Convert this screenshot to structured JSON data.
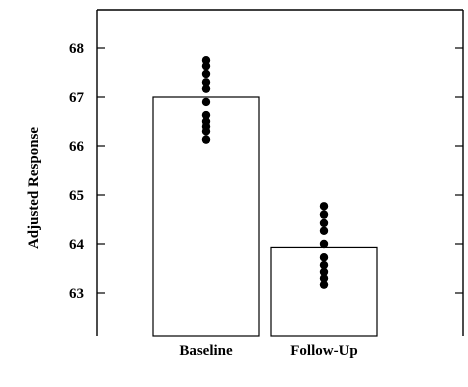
{
  "chart_data": {
    "type": "bar",
    "title": "",
    "xlabel": "",
    "ylabel": "Adjusted Response",
    "categories": [
      "Baseline",
      "Follow-Up"
    ],
    "values": [
      67.0,
      63.93
    ],
    "ylim": [
      62.2,
      68.7
    ],
    "yticks": [
      63,
      64,
      65,
      66,
      67,
      68
    ],
    "ytick_labels": [
      "63",
      "64",
      "65",
      "66",
      "67",
      "68"
    ],
    "points": [
      [
        66.13,
        66.3,
        66.4,
        66.5,
        66.63,
        66.9,
        67.17,
        67.3,
        67.47,
        67.63,
        67.75
      ],
      [
        63.17,
        63.3,
        63.43,
        63.57,
        63.73,
        64.0,
        64.27,
        64.43,
        64.6,
        64.77
      ]
    ],
    "bar_color": "#ffffff",
    "marker_color": "#000000",
    "grid": false
  }
}
